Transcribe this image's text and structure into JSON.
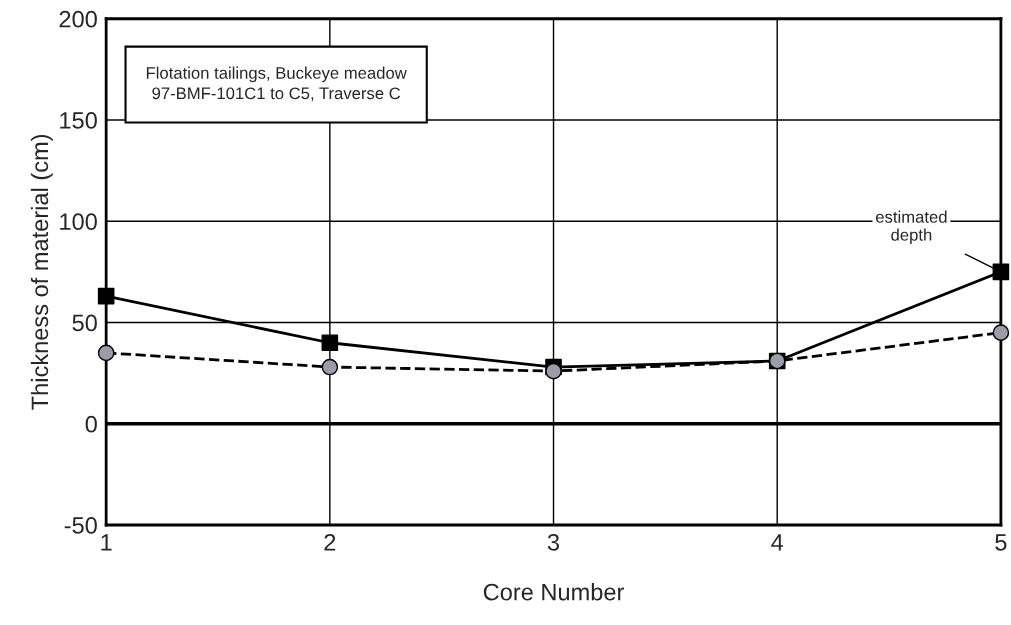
{
  "chart_data": {
    "type": "line",
    "xlabel": "Core Number",
    "ylabel": "Thickness of material (cm)",
    "x": [
      1,
      2,
      3,
      4,
      5
    ],
    "series": [
      {
        "color": "#000000",
        "marker": "square",
        "line_style": "solid",
        "values": [
          63,
          40,
          28,
          31,
          75
        ]
      },
      {
        "color": "#9a9ca8",
        "marker": "circle",
        "line_style": "dashed",
        "values": [
          35,
          28,
          26,
          31,
          45
        ]
      }
    ],
    "xlim": [
      1,
      5
    ],
    "xticks": [
      1,
      2,
      3,
      4,
      5
    ],
    "ylim": [
      -50,
      200
    ],
    "yticks": [
      -50,
      0,
      50,
      100,
      150,
      200
    ],
    "grid": true,
    "legend": false,
    "ref_lines": [
      {
        "axis": "y",
        "value": 0,
        "color": "#000000"
      }
    ],
    "annotations": [
      "Flotation tailings, Buckeye meadow\n97-BMF-101C1 to C5, Traverse C",
      {
        "text": "estimated\ndepth",
        "x": 5,
        "y": 75
      }
    ]
  }
}
